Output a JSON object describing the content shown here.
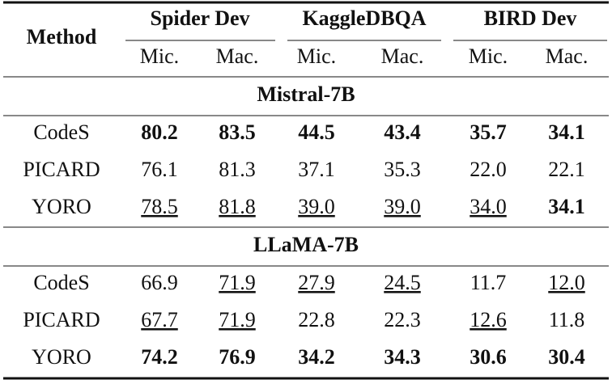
{
  "table": {
    "header": {
      "method": "Method",
      "groups": [
        "Spider Dev",
        "KaggleDBQA",
        "BIRD Dev"
      ],
      "subcolumns": [
        "Mic.",
        "Mac.",
        "Mic.",
        "Mac.",
        "Mic.",
        "Mac."
      ]
    },
    "sections": [
      {
        "title": "Mistral-7B",
        "rows": [
          {
            "label": "CodeS",
            "cells": [
              {
                "text": "80.2",
                "style": "bold"
              },
              {
                "text": "83.5",
                "style": "bold"
              },
              {
                "text": "44.5",
                "style": "bold"
              },
              {
                "text": "43.4",
                "style": "bold"
              },
              {
                "text": "35.7",
                "style": "bold"
              },
              {
                "text": "34.1",
                "style": "bold"
              }
            ]
          },
          {
            "label": "PICARD",
            "cells": [
              {
                "text": "76.1",
                "style": "plain"
              },
              {
                "text": "81.3",
                "style": "plain"
              },
              {
                "text": "37.1",
                "style": "plain"
              },
              {
                "text": "35.3",
                "style": "plain"
              },
              {
                "text": "22.0",
                "style": "plain"
              },
              {
                "text": "22.1",
                "style": "plain"
              }
            ]
          },
          {
            "label": "YORO",
            "cells": [
              {
                "text": "78.5",
                "style": "underline"
              },
              {
                "text": "81.8",
                "style": "underline"
              },
              {
                "text": "39.0",
                "style": "underline"
              },
              {
                "text": "39.0",
                "style": "underline"
              },
              {
                "text": "34.0",
                "style": "underline"
              },
              {
                "text": "34.1",
                "style": "bold"
              }
            ]
          }
        ]
      },
      {
        "title": "LLaMA-7B",
        "rows": [
          {
            "label": "CodeS",
            "cells": [
              {
                "text": "66.9",
                "style": "plain"
              },
              {
                "text": "71.9",
                "style": "underline"
              },
              {
                "text": "27.9",
                "style": "underline"
              },
              {
                "text": "24.5",
                "style": "underline"
              },
              {
                "text": "11.7",
                "style": "plain"
              },
              {
                "text": "12.0",
                "style": "underline"
              }
            ]
          },
          {
            "label": "PICARD",
            "cells": [
              {
                "text": "67.7",
                "style": "underline"
              },
              {
                "text": "71.9",
                "style": "underline"
              },
              {
                "text": "22.8",
                "style": "plain"
              },
              {
                "text": "22.3",
                "style": "plain"
              },
              {
                "text": "12.6",
                "style": "underline"
              },
              {
                "text": "11.8",
                "style": "plain"
              }
            ]
          },
          {
            "label": "YORO",
            "cells": [
              {
                "text": "74.2",
                "style": "bold"
              },
              {
                "text": "76.9",
                "style": "bold"
              },
              {
                "text": "34.2",
                "style": "bold"
              },
              {
                "text": "34.3",
                "style": "bold"
              },
              {
                "text": "30.6",
                "style": "bold"
              },
              {
                "text": "30.4",
                "style": "bold"
              }
            ]
          }
        ]
      }
    ]
  }
}
